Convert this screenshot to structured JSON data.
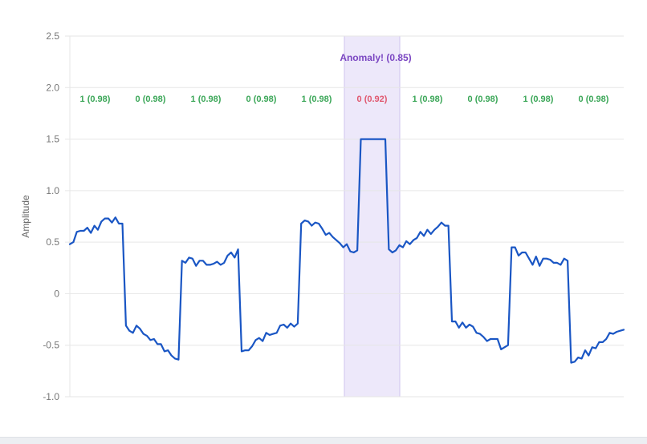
{
  "chart_data": {
    "type": "line",
    "title": "",
    "xlabel": "",
    "ylabel": "Amplitude",
    "ylim": [
      -1.0,
      2.5
    ],
    "y_ticks": [
      "2.5",
      "2.0",
      "1.5",
      "1.0",
      "0.5",
      "0",
      "-0.5",
      "-1.0"
    ],
    "y_tick_values": [
      2.5,
      2.0,
      1.5,
      1.0,
      0.5,
      0,
      -0.5,
      -1.0
    ],
    "grid": true,
    "series_color": "#1a56c4",
    "segments": [
      {
        "label": "1 (0.98)",
        "class": 1,
        "confidence": 0.98,
        "status": "normal"
      },
      {
        "label": "0 (0.98)",
        "class": 0,
        "confidence": 0.98,
        "status": "normal"
      },
      {
        "label": "1 (0.98)",
        "class": 1,
        "confidence": 0.98,
        "status": "normal"
      },
      {
        "label": "0 (0.98)",
        "class": 0,
        "confidence": 0.98,
        "status": "normal"
      },
      {
        "label": "1 (0.98)",
        "class": 1,
        "confidence": 0.98,
        "status": "normal"
      },
      {
        "label": "0 (0.92)",
        "class": 0,
        "confidence": 0.92,
        "status": "anomaly"
      },
      {
        "label": "1 (0.98)",
        "class": 1,
        "confidence": 0.98,
        "status": "normal"
      },
      {
        "label": "0 (0.98)",
        "class": 0,
        "confidence": 0.98,
        "status": "normal"
      },
      {
        "label": "1 (0.98)",
        "class": 1,
        "confidence": 0.98,
        "status": "normal"
      },
      {
        "label": "0 (0.98)",
        "class": 0,
        "confidence": 0.98,
        "status": "normal"
      }
    ],
    "annotation": {
      "text": "Anomaly! (0.85)",
      "segment_index": 5,
      "score": 0.85
    },
    "colors": {
      "normal_label": "#3aa657",
      "anomaly_label": "#e0566e",
      "annotation": "#7b47c2",
      "band_fill": "#ede8fa",
      "band_stroke": "#cfc3ef",
      "grid": "#e6e6e6",
      "tick_text": "#777777"
    },
    "series": [
      {
        "name": "Amplitude",
        "values": [
          0.48,
          0.5,
          0.6,
          0.61,
          0.61,
          0.64,
          0.59,
          0.66,
          0.62,
          0.7,
          0.73,
          0.73,
          0.69,
          0.74,
          0.68,
          0.68,
          -0.31,
          -0.36,
          -0.38,
          -0.31,
          -0.34,
          -0.39,
          -0.41,
          -0.45,
          -0.44,
          -0.49,
          -0.49,
          -0.56,
          -0.55,
          -0.6,
          -0.63,
          -0.64,
          0.32,
          0.3,
          0.35,
          0.34,
          0.27,
          0.32,
          0.32,
          0.28,
          0.28,
          0.29,
          0.31,
          0.28,
          0.3,
          0.37,
          0.4,
          0.35,
          0.43,
          -0.56,
          -0.55,
          -0.55,
          -0.51,
          -0.45,
          -0.43,
          -0.46,
          -0.38,
          -0.4,
          -0.39,
          -0.38,
          -0.31,
          -0.3,
          -0.33,
          -0.29,
          -0.32,
          -0.29,
          0.68,
          0.71,
          0.7,
          0.66,
          0.69,
          0.68,
          0.63,
          0.57,
          0.59,
          0.55,
          0.52,
          0.49,
          0.45,
          0.48,
          0.41,
          0.4,
          0.42,
          1.5,
          1.5,
          1.5,
          1.5,
          1.5,
          1.5,
          1.5,
          1.5,
          0.43,
          0.4,
          0.42,
          0.47,
          0.45,
          0.51,
          0.48,
          0.52,
          0.54,
          0.6,
          0.56,
          0.62,
          0.58,
          0.62,
          0.65,
          0.69,
          0.66,
          0.66,
          -0.27,
          -0.27,
          -0.33,
          -0.28,
          -0.33,
          -0.3,
          -0.32,
          -0.38,
          -0.39,
          -0.42,
          -0.46,
          -0.44,
          -0.44,
          -0.44,
          -0.54,
          -0.52,
          -0.5,
          0.45,
          0.45,
          0.37,
          0.4,
          0.4,
          0.34,
          0.28,
          0.36,
          0.27,
          0.34,
          0.34,
          0.33,
          0.3,
          0.3,
          0.28,
          0.34,
          0.32,
          -0.67,
          -0.66,
          -0.62,
          -0.63,
          -0.55,
          -0.6,
          -0.52,
          -0.53,
          -0.47,
          -0.47,
          -0.44,
          -0.38,
          -0.39,
          -0.37,
          -0.36,
          -0.35
        ]
      }
    ]
  }
}
